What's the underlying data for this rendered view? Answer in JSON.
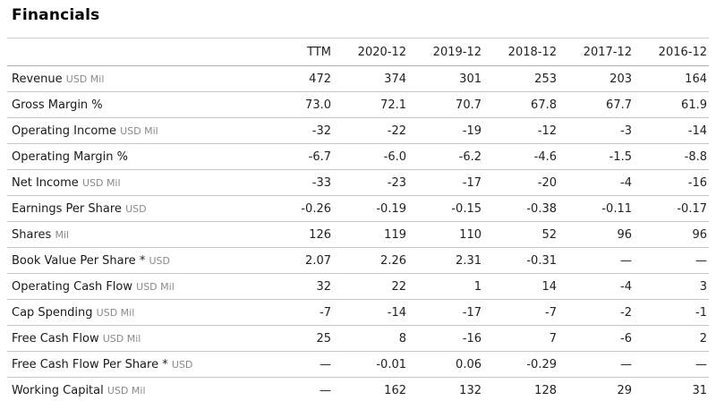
{
  "page": {
    "title": "Financials"
  },
  "table": {
    "columns": [
      "TTM",
      "2020-12",
      "2019-12",
      "2018-12",
      "2017-12",
      "2016-12"
    ],
    "rows": [
      {
        "label": "Revenue",
        "unit": "USD Mil",
        "values": [
          "472",
          "374",
          "301",
          "253",
          "203",
          "164"
        ]
      },
      {
        "label": "Gross Margin %",
        "unit": "",
        "values": [
          "73.0",
          "72.1",
          "70.7",
          "67.8",
          "67.7",
          "61.9"
        ]
      },
      {
        "label": "Operating Income",
        "unit": "USD Mil",
        "values": [
          "-32",
          "-22",
          "-19",
          "-12",
          "-3",
          "-14"
        ]
      },
      {
        "label": "Operating Margin %",
        "unit": "",
        "values": [
          "-6.7",
          "-6.0",
          "-6.2",
          "-4.6",
          "-1.5",
          "-8.8"
        ]
      },
      {
        "label": "Net Income",
        "unit": "USD Mil",
        "values": [
          "-33",
          "-23",
          "-17",
          "-20",
          "-4",
          "-16"
        ]
      },
      {
        "label": "Earnings Per Share",
        "unit": "USD",
        "values": [
          "-0.26",
          "-0.19",
          "-0.15",
          "-0.38",
          "-0.11",
          "-0.17"
        ]
      },
      {
        "label": "Shares",
        "unit": "Mil",
        "values": [
          "126",
          "119",
          "110",
          "52",
          "96",
          "96"
        ]
      },
      {
        "label": "Book Value Per Share *",
        "unit": "USD",
        "values": [
          "2.07",
          "2.26",
          "2.31",
          "-0.31",
          "—",
          "—"
        ]
      },
      {
        "label": "Operating Cash Flow",
        "unit": "USD Mil",
        "values": [
          "32",
          "22",
          "1",
          "14",
          "-4",
          "3"
        ]
      },
      {
        "label": "Cap Spending",
        "unit": "USD Mil",
        "values": [
          "-7",
          "-14",
          "-17",
          "-7",
          "-2",
          "-1"
        ]
      },
      {
        "label": "Free Cash Flow",
        "unit": "USD Mil",
        "values": [
          "25",
          "8",
          "-16",
          "7",
          "-6",
          "2"
        ]
      },
      {
        "label": "Free Cash Flow Per Share *",
        "unit": "USD",
        "values": [
          "—",
          "-0.01",
          "0.06",
          "-0.29",
          "—",
          "—"
        ]
      },
      {
        "label": "Working Capital",
        "unit": "USD Mil",
        "values": [
          "—",
          "162",
          "132",
          "128",
          "29",
          "31"
        ]
      }
    ]
  },
  "colors": {
    "title": "#000000",
    "label_text": "#1a1a1a",
    "unit_text": "#8a8a8a",
    "value_text": "#222222",
    "row_border": "#c6c6c6",
    "header_border": "#ababab",
    "background": "#ffffff"
  }
}
